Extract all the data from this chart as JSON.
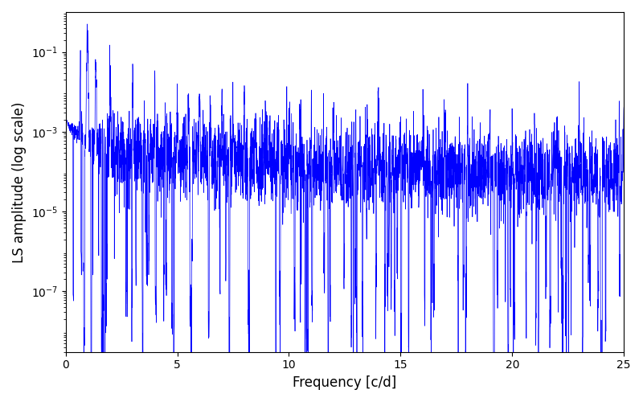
{
  "title": "",
  "xlabel": "Frequency [c/d]",
  "ylabel": "LS amplitude (log scale)",
  "xlim": [
    0,
    25
  ],
  "ylim": [
    3e-09,
    1.0
  ],
  "yscale": "log",
  "line_color": "#0000ff",
  "line_width": 0.5,
  "figsize": [
    8.0,
    5.0
  ],
  "dpi": 100,
  "freq_max": 25.0,
  "n_points": 4000,
  "seed": 7,
  "yticks": [
    1e-07,
    1e-05,
    0.001,
    0.1
  ],
  "xticks": [
    0,
    5,
    10,
    15,
    20,
    25
  ]
}
